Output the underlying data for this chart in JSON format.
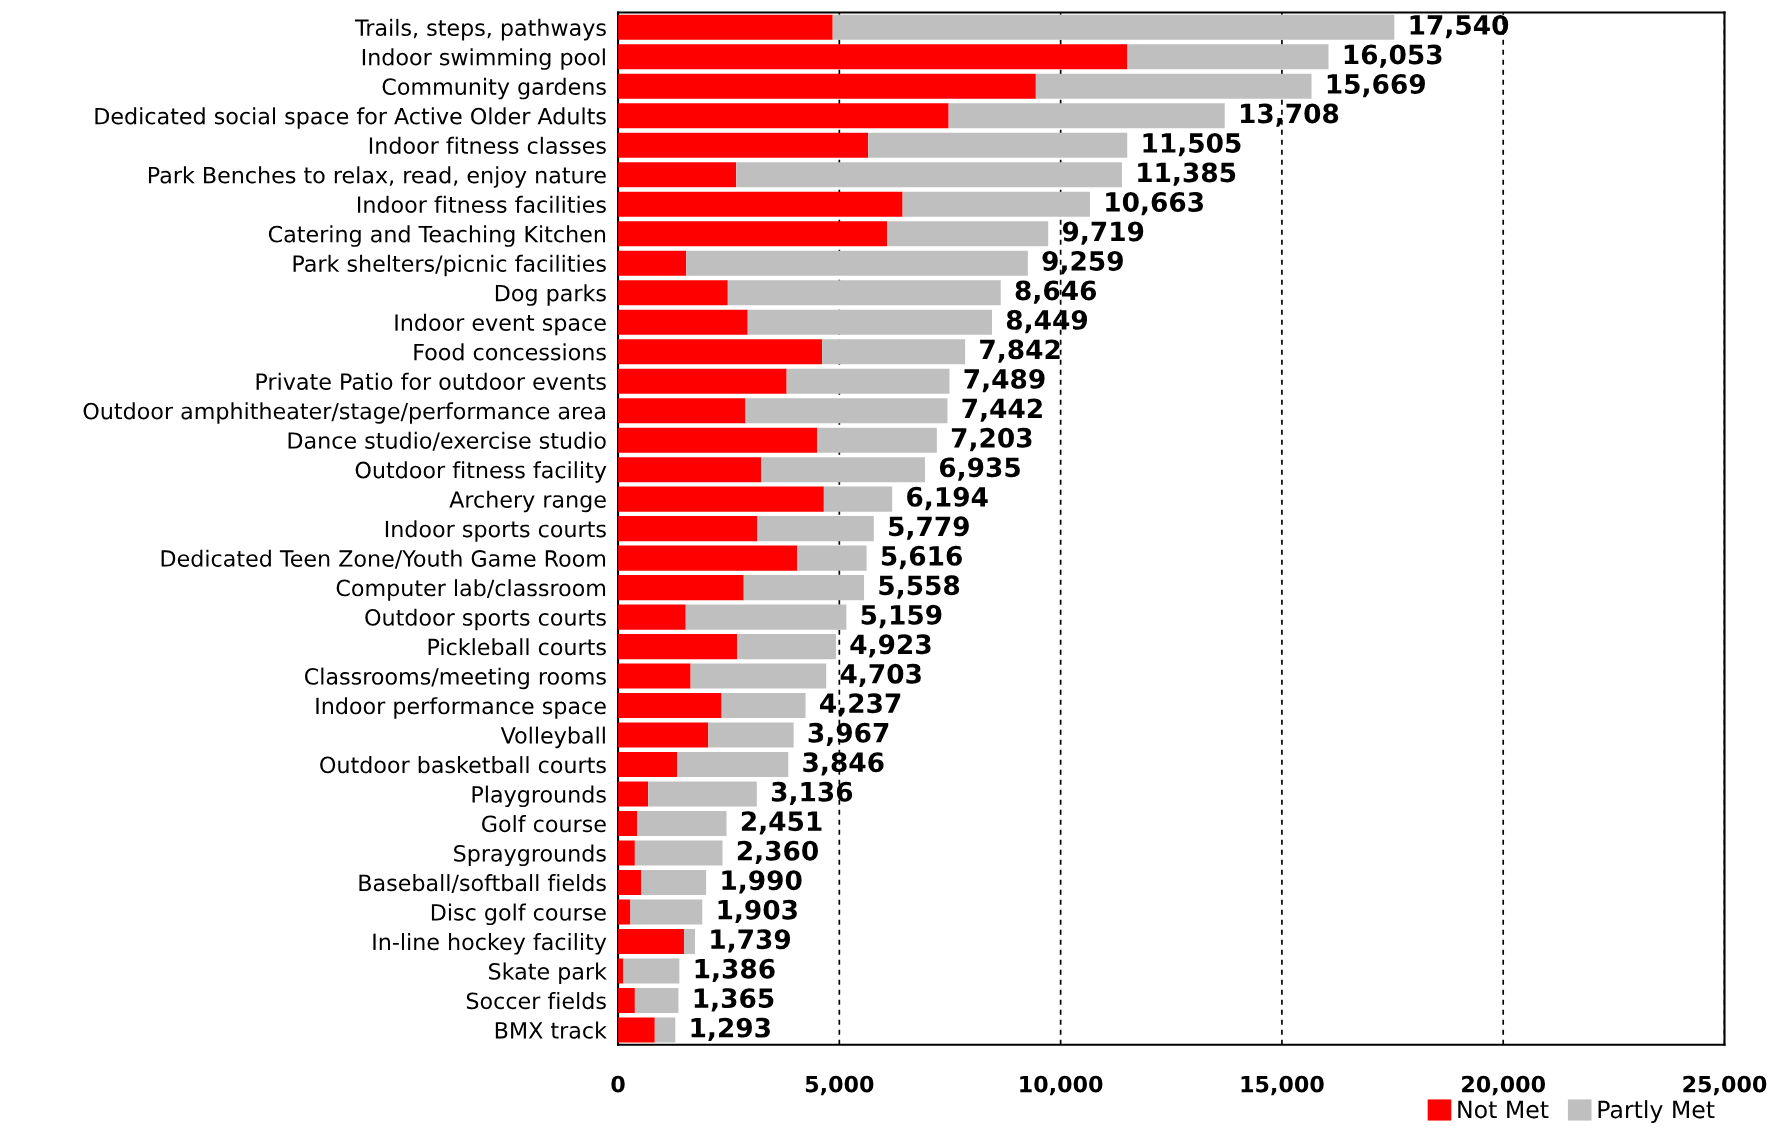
{
  "chart_data": {
    "type": "bar",
    "orientation": "horizontal",
    "stacked": true,
    "categories": [
      "Trails, steps, pathways",
      "Indoor swimming pool",
      "Community gardens",
      "Dedicated social space for Active Older Adults",
      "Indoor fitness classes",
      "Park Benches to relax, read, enjoy nature",
      "Indoor fitness facilities",
      "Catering and Teaching Kitchen",
      "Park shelters/picnic facilities",
      "Dog parks",
      "Indoor event space",
      "Food concessions",
      "Private Patio for outdoor events",
      "Outdoor amphitheater/stage/performance area",
      "Dance studio/exercise studio",
      "Outdoor fitness facility",
      "Archery range",
      "Indoor sports courts",
      "Dedicated Teen Zone/Youth Game Room",
      "Computer lab/classroom",
      "Outdoor sports courts",
      "Pickleball courts",
      "Classrooms/meeting rooms",
      "Indoor performance space",
      "Volleyball",
      "Outdoor basketball courts",
      "Playgrounds",
      "Golf course",
      "Spraygrounds",
      "Baseball/softball fields",
      "Disc golf course",
      "In-line hockey facility",
      "Skate park",
      "Soccer fields",
      "BMX track"
    ],
    "series": [
      {
        "name": "Not Met",
        "color": "#ff0000",
        "values": [
          4850,
          11510,
          9440,
          7470,
          5650,
          2670,
          6430,
          6080,
          1540,
          2480,
          2930,
          4610,
          3810,
          2880,
          4500,
          3230,
          4650,
          3150,
          4050,
          2840,
          1530,
          2690,
          1640,
          2340,
          2040,
          1340,
          680,
          430,
          380,
          520,
          280,
          1490,
          120,
          380,
          830
        ]
      },
      {
        "name": "Partly Met",
        "color": "#bfbfbf",
        "values": [
          12690,
          4543,
          6229,
          6238,
          5855,
          8715,
          4233,
          3639,
          7719,
          6166,
          5519,
          3232,
          3679,
          4562,
          2703,
          3705,
          1544,
          2629,
          1566,
          2718,
          3629,
          2233,
          3063,
          1897,
          1927,
          2506,
          2456,
          2021,
          1980,
          1470,
          1623,
          249,
          1266,
          985,
          463
        ]
      }
    ],
    "totals": [
      "17,540",
      "16,053",
      "15,669",
      "13,708",
      "11,505",
      "11,385",
      "10,663",
      "9,719",
      "9,259",
      "8,646",
      "8,449",
      "7,842",
      "7,489",
      "7,442",
      "7,203",
      "6,935",
      "6,194",
      "5,779",
      "5,616",
      "5,558",
      "5,159",
      "4,923",
      "4,703",
      "4,237",
      "3,967",
      "3,846",
      "3,136",
      "2,451",
      "2,360",
      "1,990",
      "1,903",
      "1,739",
      "1,386",
      "1,365",
      "1,293"
    ],
    "xlim": [
      0,
      25000
    ],
    "xticks": [
      {
        "value": 0,
        "label": "0"
      },
      {
        "value": 5000,
        "label": "5,000"
      },
      {
        "value": 10000,
        "label": "10,000"
      },
      {
        "value": 15000,
        "label": "15,000"
      },
      {
        "value": 20000,
        "label": "20,000"
      },
      {
        "value": 25000,
        "label": "25,000"
      }
    ],
    "grid": "x",
    "line_style": "dashed",
    "legend": "bottom right"
  }
}
